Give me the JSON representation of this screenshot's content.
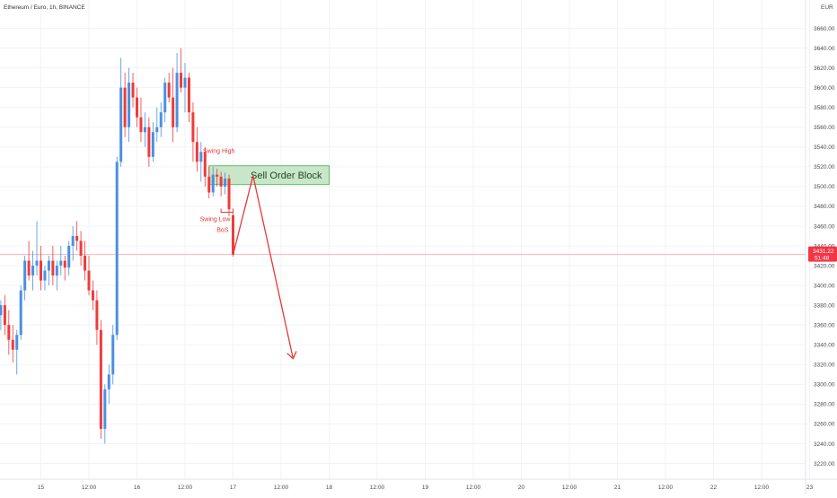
{
  "header": {
    "symbol_title": "Ethereum / Euro, 1h, BINANCE",
    "currency": "EUR"
  },
  "price_badge": {
    "price": "3431.22",
    "countdown": "51:48",
    "color": "#f23645"
  },
  "colors": {
    "up": "#4a90e2",
    "down": "#ef3b3b",
    "annotation": "#e53935",
    "order_block_fill": "#c8e6c9",
    "order_block_border": "#66bb6a",
    "grid": "#f2f3f5",
    "axis_text": "#4a4a4a"
  },
  "annotations": {
    "swing_high": "Swing High",
    "swing_low": "Swing Low",
    "bos": "BoS",
    "sell_order_block": "Sell Order Block"
  },
  "chart_data": {
    "type": "candlestick",
    "title": "Ethereum / Euro, 1h, BINANCE",
    "ylabel": "EUR",
    "ylim": [
      3203,
      3685
    ],
    "y_ticks": [
      3220,
      3240,
      3260,
      3280,
      3300,
      3320,
      3340,
      3360,
      3380,
      3400,
      3420,
      3440,
      3460,
      3480,
      3500,
      3520,
      3540,
      3560,
      3580,
      3600,
      3620,
      3640,
      3660
    ],
    "x_ticks": [
      "15",
      "12:00",
      "16",
      "12:00",
      "17",
      "12:00",
      "18",
      "12:00",
      "19",
      "12:00",
      "20",
      "12:00",
      "21",
      "12:00",
      "22",
      "12:00",
      "23"
    ],
    "x_tick_hours": [
      0,
      12,
      24,
      36,
      48,
      60,
      72,
      84,
      96,
      108,
      120,
      132,
      144,
      156,
      168,
      180,
      192
    ],
    "candle_interval": "1h",
    "candles": [
      {
        "t": -10,
        "o": 3370,
        "h": 3385,
        "l": 3355,
        "c": 3380
      },
      {
        "t": -9,
        "o": 3380,
        "h": 3390,
        "l": 3350,
        "c": 3360
      },
      {
        "t": -8,
        "o": 3360,
        "h": 3375,
        "l": 3330,
        "c": 3345
      },
      {
        "t": -7,
        "o": 3345,
        "h": 3360,
        "l": 3322,
        "c": 3335
      },
      {
        "t": -6,
        "o": 3335,
        "h": 3355,
        "l": 3310,
        "c": 3350
      },
      {
        "t": -5,
        "o": 3350,
        "h": 3400,
        "l": 3345,
        "c": 3395
      },
      {
        "t": -4,
        "o": 3395,
        "h": 3430,
        "l": 3385,
        "c": 3425
      },
      {
        "t": -3,
        "o": 3425,
        "h": 3445,
        "l": 3405,
        "c": 3410
      },
      {
        "t": -2,
        "o": 3410,
        "h": 3435,
        "l": 3395,
        "c": 3420
      },
      {
        "t": -1,
        "o": 3420,
        "h": 3465,
        "l": 3410,
        "c": 3425
      },
      {
        "t": 0,
        "o": 3425,
        "h": 3440,
        "l": 3395,
        "c": 3405
      },
      {
        "t": 1,
        "o": 3405,
        "h": 3420,
        "l": 3395,
        "c": 3415
      },
      {
        "t": 2,
        "o": 3415,
        "h": 3430,
        "l": 3400,
        "c": 3425
      },
      {
        "t": 3,
        "o": 3425,
        "h": 3440,
        "l": 3400,
        "c": 3410
      },
      {
        "t": 4,
        "o": 3410,
        "h": 3425,
        "l": 3395,
        "c": 3420
      },
      {
        "t": 5,
        "o": 3420,
        "h": 3440,
        "l": 3410,
        "c": 3425
      },
      {
        "t": 6,
        "o": 3425,
        "h": 3430,
        "l": 3405,
        "c": 3418
      },
      {
        "t": 7,
        "o": 3418,
        "h": 3445,
        "l": 3410,
        "c": 3440
      },
      {
        "t": 8,
        "o": 3440,
        "h": 3460,
        "l": 3425,
        "c": 3450
      },
      {
        "t": 9,
        "o": 3450,
        "h": 3465,
        "l": 3435,
        "c": 3445
      },
      {
        "t": 10,
        "o": 3445,
        "h": 3455,
        "l": 3420,
        "c": 3430
      },
      {
        "t": 11,
        "o": 3430,
        "h": 3445,
        "l": 3405,
        "c": 3415
      },
      {
        "t": 12,
        "o": 3415,
        "h": 3430,
        "l": 3390,
        "c": 3395
      },
      {
        "t": 13,
        "o": 3395,
        "h": 3405,
        "l": 3375,
        "c": 3385
      },
      {
        "t": 14,
        "o": 3385,
        "h": 3395,
        "l": 3340,
        "c": 3355
      },
      {
        "t": 15,
        "o": 3355,
        "h": 3365,
        "l": 3245,
        "c": 3255
      },
      {
        "t": 16,
        "o": 3255,
        "h": 3300,
        "l": 3240,
        "c": 3295
      },
      {
        "t": 17,
        "o": 3295,
        "h": 3320,
        "l": 3280,
        "c": 3310
      },
      {
        "t": 18,
        "o": 3310,
        "h": 3360,
        "l": 3300,
        "c": 3350
      },
      {
        "t": 19,
        "o": 3350,
        "h": 3530,
        "l": 3345,
        "c": 3525
      },
      {
        "t": 20,
        "o": 3525,
        "h": 3630,
        "l": 3520,
        "c": 3600
      },
      {
        "t": 21,
        "o": 3600,
        "h": 3615,
        "l": 3550,
        "c": 3560
      },
      {
        "t": 22,
        "o": 3560,
        "h": 3620,
        "l": 3545,
        "c": 3605
      },
      {
        "t": 23,
        "o": 3605,
        "h": 3615,
        "l": 3580,
        "c": 3590
      },
      {
        "t": 24,
        "o": 3590,
        "h": 3600,
        "l": 3560,
        "c": 3570
      },
      {
        "t": 25,
        "o": 3570,
        "h": 3590,
        "l": 3545,
        "c": 3555
      },
      {
        "t": 26,
        "o": 3555,
        "h": 3575,
        "l": 3540,
        "c": 3560
      },
      {
        "t": 27,
        "o": 3560,
        "h": 3570,
        "l": 3520,
        "c": 3530
      },
      {
        "t": 28,
        "o": 3530,
        "h": 3565,
        "l": 3525,
        "c": 3555
      },
      {
        "t": 29,
        "o": 3555,
        "h": 3580,
        "l": 3545,
        "c": 3560
      },
      {
        "t": 30,
        "o": 3560,
        "h": 3585,
        "l": 3550,
        "c": 3575
      },
      {
        "t": 31,
        "o": 3575,
        "h": 3610,
        "l": 3565,
        "c": 3605
      },
      {
        "t": 32,
        "o": 3605,
        "h": 3615,
        "l": 3585,
        "c": 3590
      },
      {
        "t": 33,
        "o": 3590,
        "h": 3620,
        "l": 3545,
        "c": 3560
      },
      {
        "t": 34,
        "o": 3560,
        "h": 3635,
        "l": 3555,
        "c": 3615
      },
      {
        "t": 35,
        "o": 3615,
        "h": 3640,
        "l": 3595,
        "c": 3600
      },
      {
        "t": 36,
        "o": 3600,
        "h": 3625,
        "l": 3575,
        "c": 3610
      },
      {
        "t": 37,
        "o": 3610,
        "h": 3615,
        "l": 3565,
        "c": 3575
      },
      {
        "t": 38,
        "o": 3575,
        "h": 3585,
        "l": 3525,
        "c": 3545
      },
      {
        "t": 39,
        "o": 3545,
        "h": 3560,
        "l": 3515,
        "c": 3525
      },
      {
        "t": 40,
        "o": 3525,
        "h": 3545,
        "l": 3505,
        "c": 3535
      },
      {
        "t": 41,
        "o": 3535,
        "h": 3540,
        "l": 3500,
        "c": 3510
      },
      {
        "t": 42,
        "o": 3510,
        "h": 3520,
        "l": 3488,
        "c": 3494
      },
      {
        "t": 43,
        "o": 3494,
        "h": 3520,
        "l": 3490,
        "c": 3512
      },
      {
        "t": 44,
        "o": 3512,
        "h": 3518,
        "l": 3500,
        "c": 3510
      },
      {
        "t": 45,
        "o": 3510,
        "h": 3515,
        "l": 3490,
        "c": 3500
      },
      {
        "t": 46,
        "o": 3500,
        "h": 3514,
        "l": 3492,
        "c": 3508
      },
      {
        "t": 47,
        "o": 3508,
        "h": 3512,
        "l": 3470,
        "c": 3477
      },
      {
        "t": 48,
        "o": 3471,
        "h": 3474,
        "l": 3429,
        "c": 3431.22
      }
    ],
    "order_block": {
      "t_start": 42,
      "t_end": 72,
      "y_top": 3521,
      "y_bottom": 3502
    },
    "current_price": 3431.22,
    "swing_high": {
      "t": 44,
      "y": 3513
    },
    "swing_low": {
      "t_start": 45,
      "t_end": 48,
      "y": 3474
    },
    "projection": [
      {
        "t": 48,
        "y": 3431
      },
      {
        "t": 53,
        "y": 3511
      },
      {
        "t": 63,
        "y": 3326
      }
    ]
  }
}
